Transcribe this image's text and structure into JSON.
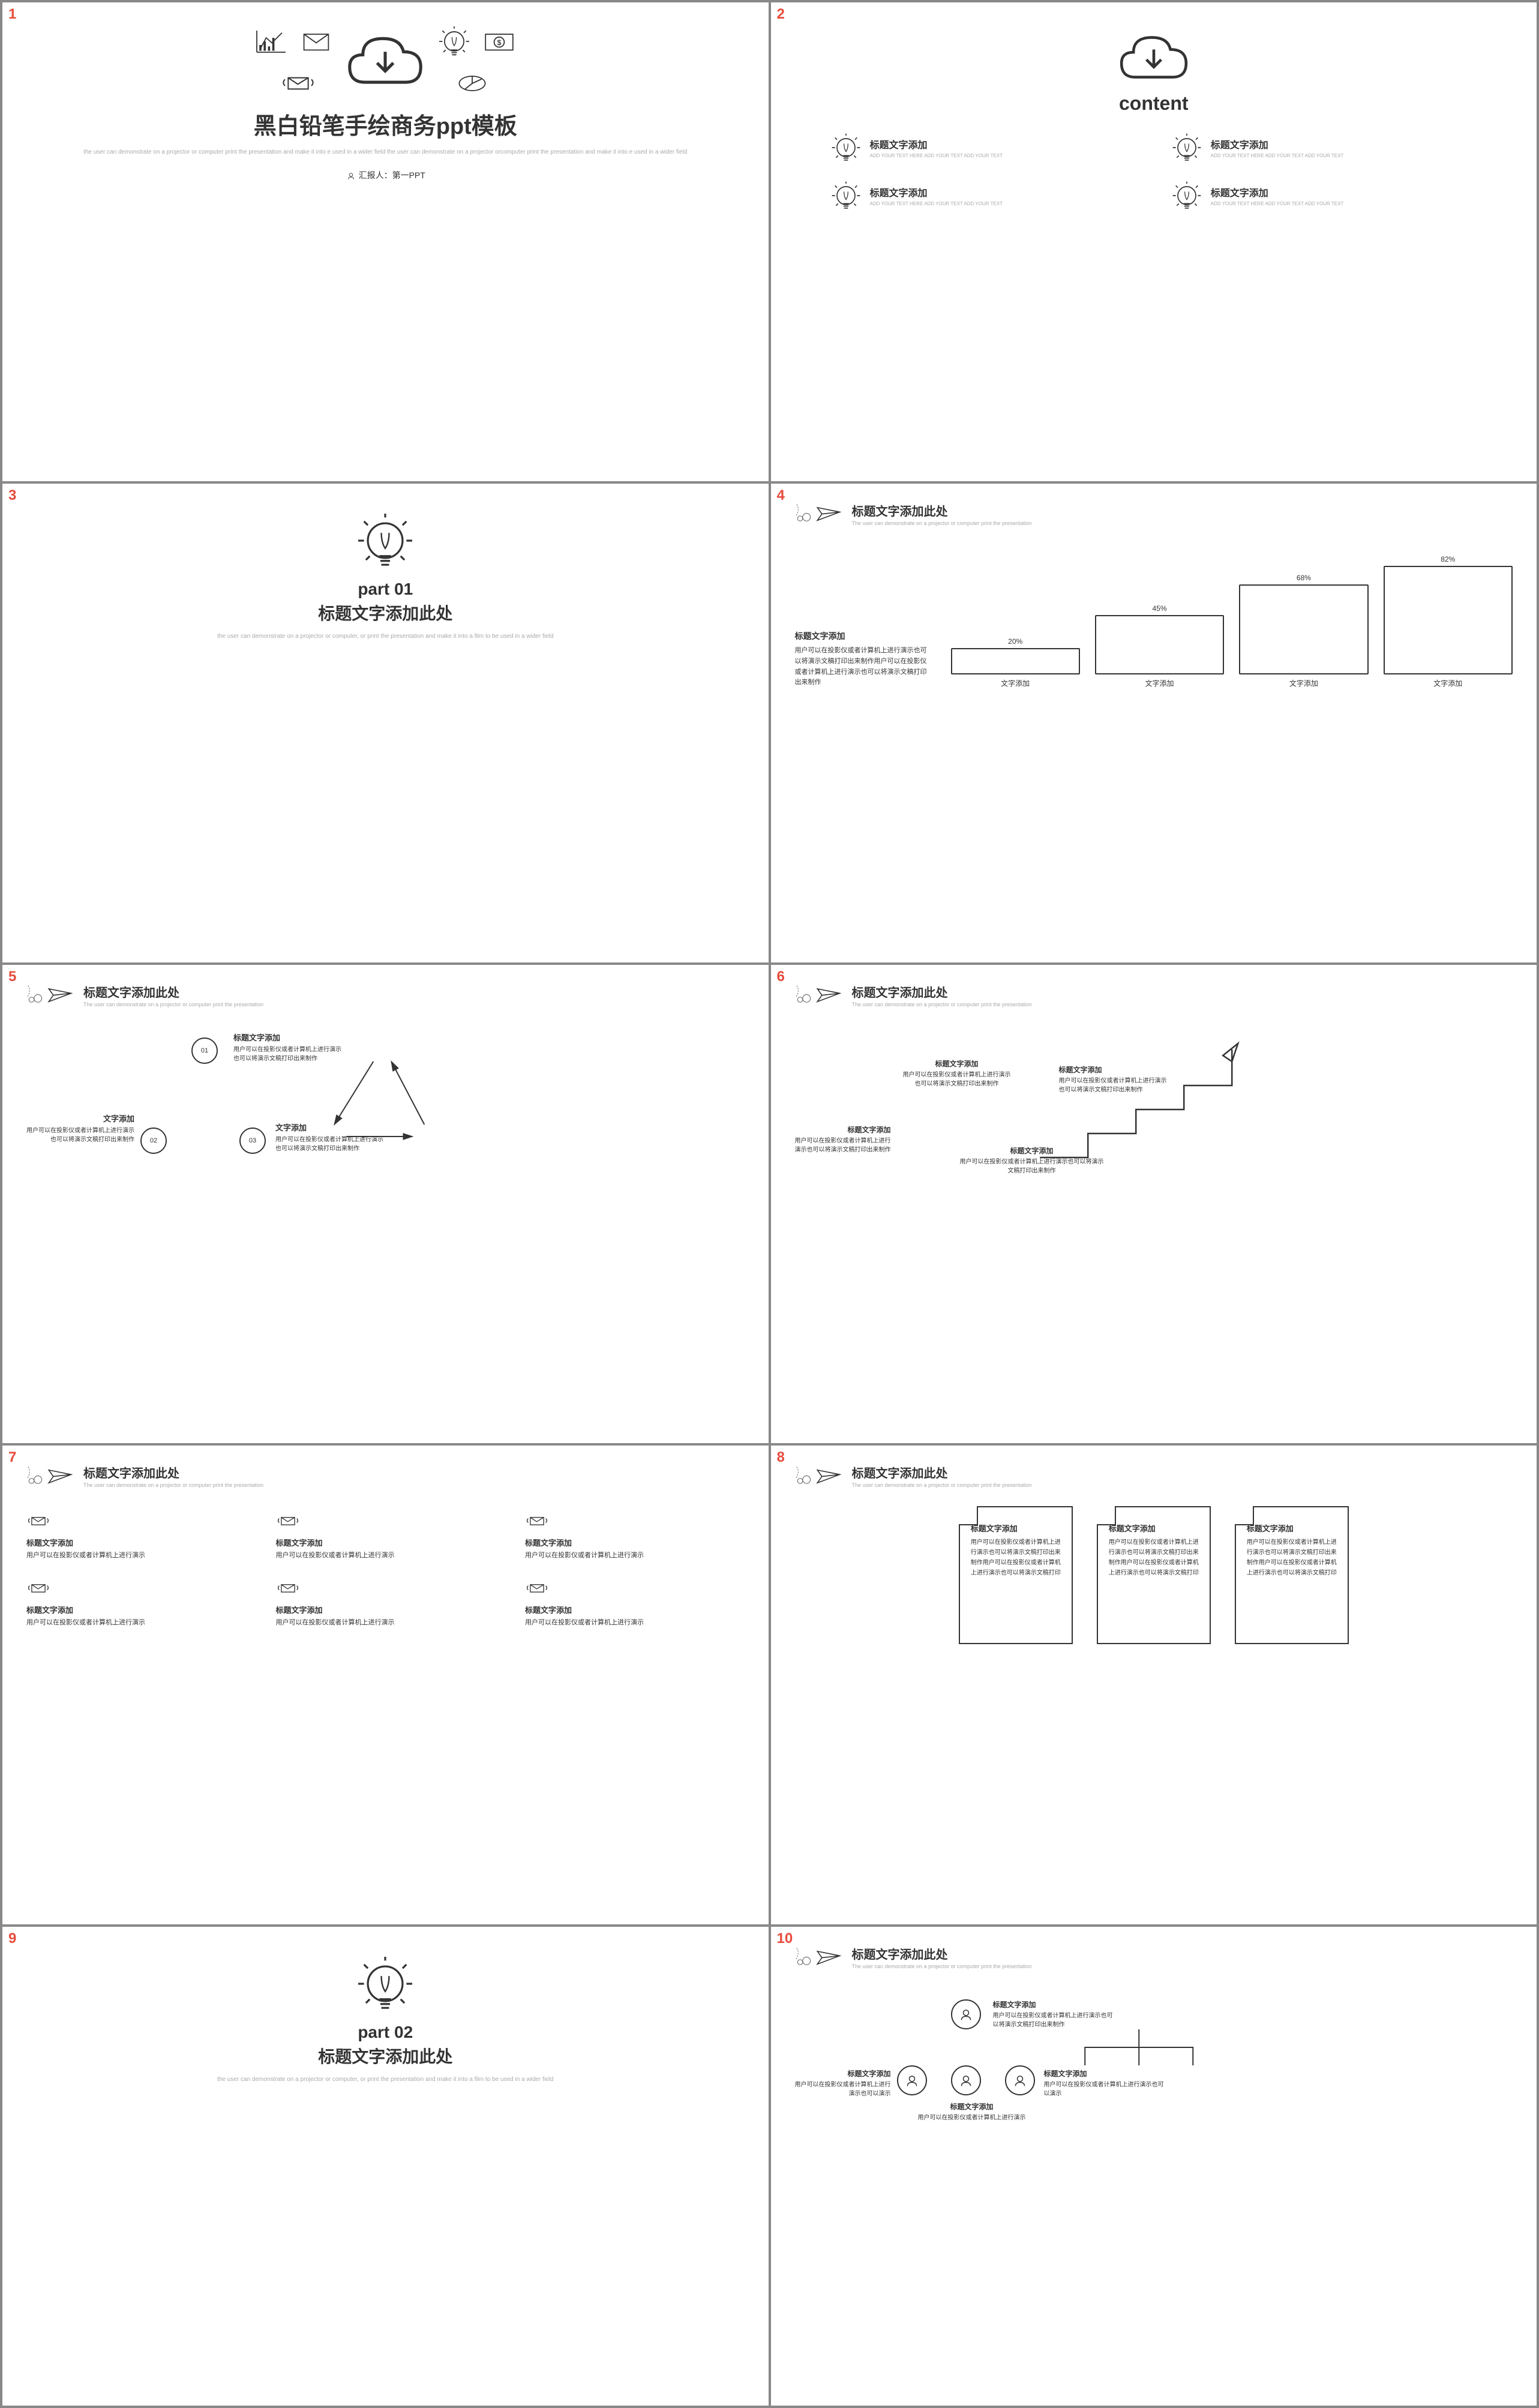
{
  "colors": {
    "text": "#333333",
    "muted": "#aaaaaa",
    "num": "#e74c3c",
    "stroke": "#333333",
    "bg": "#ffffff"
  },
  "slide1": {
    "title": "黑白铅笔手绘商务ppt模板",
    "subtitle": "the user can demonstrate on a projector or computer print the presentation and make it into e used in a wider field the user can demonstrate on a projector orcomputer print the presentation and make it into e used in a wider field",
    "presenter_label": "汇报人：",
    "presenter": "第一PPT"
  },
  "slide2": {
    "content_title": "content",
    "items": [
      {
        "title": "标题文字添加",
        "sub": "ADD YOUR TEXT HERE ADD YOUR TEXT ADD YOUR TEXT"
      },
      {
        "title": "标题文字添加",
        "sub": "ADD YOUR TEXT HERE ADD YOUR TEXT ADD YOUR TEXT"
      },
      {
        "title": "标题文字添加",
        "sub": "ADD YOUR TEXT HERE ADD YOUR TEXT ADD YOUR TEXT"
      },
      {
        "title": "标题文字添加",
        "sub": "ADD YOUR TEXT HERE ADD YOUR TEXT ADD YOUR TEXT"
      }
    ]
  },
  "slide3": {
    "part": "part 01",
    "title": "标题文字添加此处",
    "sub": "the user can demonstrate on a projector or computer, or print the presentation and make it into a film to be used in a wider field"
  },
  "slide4": {
    "header": "标题文字添加此处",
    "header_sub": "The user can demonstrate on a projector or computer print the presentation",
    "left_title": "标题文字添加",
    "left_text": "用户可以在投影仪或者计算机上进行演示也可以将演示文稿打印出来制作用户可以在投影仪或者计算机上进行演示也可以将演示文稿打印出来制作",
    "chart": {
      "type": "bar",
      "categories": [
        "文字添加",
        "文字添加",
        "文字添加",
        "文字添加"
      ],
      "values": [
        20,
        45,
        68,
        82
      ],
      "value_labels": [
        "20%",
        "45%",
        "68%",
        "82%"
      ],
      "max": 100,
      "bar_color": "#ffffff",
      "border_color": "#333333",
      "border_width": 2
    }
  },
  "slide5": {
    "header": "标题文字添加此处",
    "header_sub": "The user can demonstrate on a projector or computer print the presentation",
    "nodes": [
      "01",
      "02",
      "03"
    ],
    "texts": [
      {
        "title": "标题文字添加",
        "body": "用户可以在投影仪或者计算机上进行演示也可以将演示文稿打印出来制作"
      },
      {
        "title": "文字添加",
        "body": "用户可以在投影仪或者计算机上进行演示也可以将演示文稿打印出来制作"
      },
      {
        "title": "文字添加",
        "body": "用户可以在投影仪或者计算机上进行演示也可以将演示文稿打印出来制作"
      }
    ]
  },
  "slide6": {
    "header": "标题文字添加此处",
    "header_sub": "The user can demonstrate on a projector or computer print the presentation",
    "texts": [
      {
        "title": "标题文字添加",
        "body": "用户可以在投影仪或者计算机上进行演示也可以将演示文稿打印出来制作"
      },
      {
        "title": "标题文字添加",
        "body": "用户可以在投影仪或者计算机上进行演示也可以将演示文稿打印出来制作"
      },
      {
        "title": "标题文字添加",
        "body": "用户可以在投影仪或者计算机上进行演示也可以将演示文稿打印出来制作"
      },
      {
        "title": "标题文字添加",
        "body": "用户可以在投影仪或者计算机上进行演示也可以将演示文稿打印出来制作"
      }
    ]
  },
  "slide7": {
    "header": "标题文字添加此处",
    "header_sub": "The user can demonstrate on a projector or computer print the presentation",
    "items": [
      {
        "title": "标题文字添加",
        "body": "用户可以在投影仪或者计算机上进行演示"
      },
      {
        "title": "标题文字添加",
        "body": "用户可以在投影仪或者计算机上进行演示"
      },
      {
        "title": "标题文字添加",
        "body": "用户可以在投影仪或者计算机上进行演示"
      },
      {
        "title": "标题文字添加",
        "body": "用户可以在投影仪或者计算机上进行演示"
      },
      {
        "title": "标题文字添加",
        "body": "用户可以在投影仪或者计算机上进行演示"
      },
      {
        "title": "标题文字添加",
        "body": "用户可以在投影仪或者计算机上进行演示"
      }
    ]
  },
  "slide8": {
    "header": "标题文字添加此处",
    "header_sub": "The user can demonstrate on a projector or computer print the presentation",
    "pages": [
      {
        "title": "标题文字添加",
        "body": "用户可以在投影仪或者计算机上进行演示也可以将演示文稿打印出来制作用户可以在投影仪或者计算机上进行演示也可以将演示文稿打印"
      },
      {
        "title": "标题文字添加",
        "body": "用户可以在投影仪或者计算机上进行演示也可以将演示文稿打印出来制作用户可以在投影仪或者计算机上进行演示也可以将演示文稿打印"
      },
      {
        "title": "标题文字添加",
        "body": "用户可以在投影仪或者计算机上进行演示也可以将演示文稿打印出来制作用户可以在投影仪或者计算机上进行演示也可以将演示文稿打印"
      }
    ]
  },
  "slide9": {
    "part": "part 02",
    "title": "标题文字添加此处",
    "sub": "the user can demonstrate on a projector or computer, or print the presentation and make it into a film to be used in a wider field"
  },
  "slide10": {
    "header": "标题文字添加此处",
    "header_sub": "The user can demonstrate on a projector or computer print the presentation",
    "texts": [
      {
        "title": "标题文字添加",
        "body": "用户可以在投影仪或者计算机上进行演示也可以将演示文稿打印出来制作"
      },
      {
        "title": "标题文字添加",
        "body": "用户可以在投影仪或者计算机上进行演示也可以演示"
      },
      {
        "title": "标题文字添加",
        "body": "用户可以在投影仪或者计算机上进行演示"
      },
      {
        "title": "标题文字添加",
        "body": "用户可以在投影仪或者计算机上进行演示也可以演示"
      }
    ]
  }
}
